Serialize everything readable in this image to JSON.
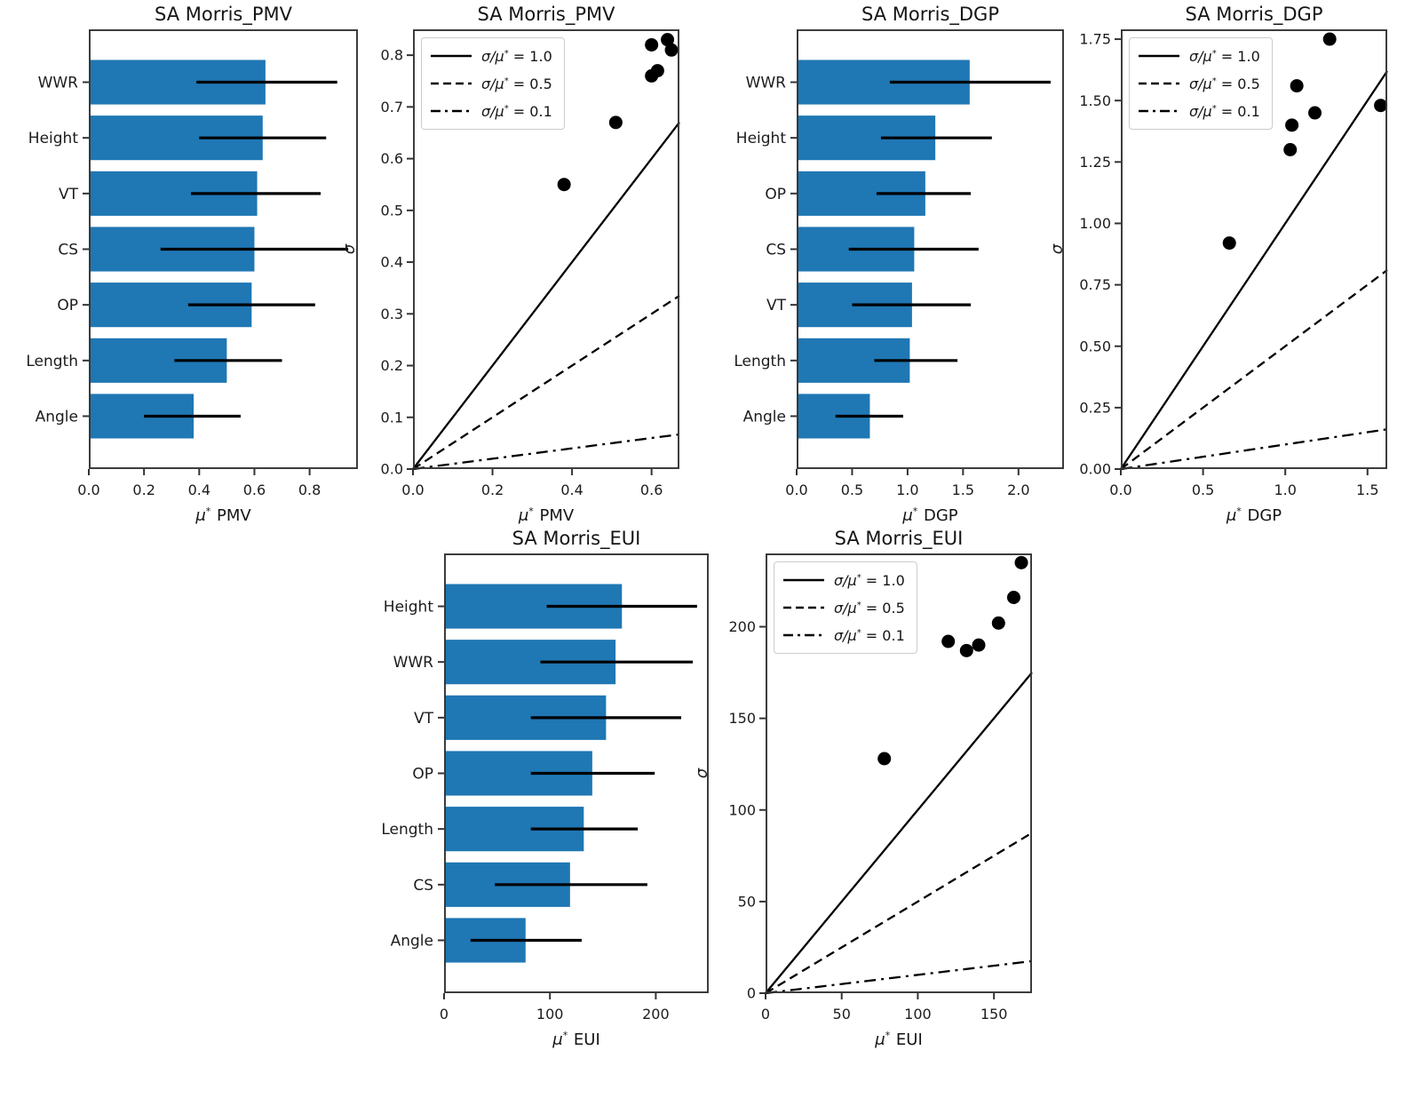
{
  "figure": {
    "background": "#ffffff"
  },
  "colors": {
    "bar": "#1f77b4",
    "error_bar": "#000000",
    "point": "#000000",
    "ref_line": "#000000",
    "spine": "#333333",
    "text": "#1c1c1c",
    "legend_border": "#cccccc"
  },
  "chart_data": [
    {
      "id": "pmv-bar",
      "type": "bar",
      "title": "SA Morris_PMV",
      "xlabel": {
        "mu": "μ",
        "sup": "*",
        "rest": " PMV"
      },
      "categories": [
        "WWR",
        "Height",
        "VT",
        "CS",
        "OP",
        "Length",
        "Angle"
      ],
      "values": [
        0.64,
        0.63,
        0.61,
        0.6,
        0.59,
        0.5,
        0.38
      ],
      "err_lo": [
        0.39,
        0.4,
        0.37,
        0.26,
        0.36,
        0.31,
        0.2
      ],
      "err_hi": [
        0.9,
        0.86,
        0.84,
        0.94,
        0.82,
        0.7,
        0.55
      ],
      "xlim": [
        0,
        0.975
      ],
      "xticks": [
        0,
        0.2,
        0.4,
        0.6,
        0.8
      ],
      "xtick_labels": [
        "0.0",
        "0.2",
        "0.4",
        "0.6",
        "0.8"
      ],
      "grid": false
    },
    {
      "id": "pmv-scatter",
      "type": "scatter",
      "title": "SA Morris_PMV",
      "xlabel": {
        "mu": "μ",
        "sup": "*",
        "rest": " PMV"
      },
      "ylabel": "σ",
      "legend": [
        {
          "style": "solid",
          "pre": "σ/μ",
          "sup": "*",
          "post": " = 1.0"
        },
        {
          "style": "dashed",
          "pre": "σ/μ",
          "sup": "*",
          "post": " = 0.5"
        },
        {
          "style": "dashdot",
          "pre": "σ/μ",
          "sup": "*",
          "post": " = 0.1"
        }
      ],
      "ref_slopes": [
        1.0,
        0.5,
        0.1
      ],
      "points": [
        [
          0.6,
          0.82
        ],
        [
          0.64,
          0.83
        ],
        [
          0.65,
          0.81
        ],
        [
          0.615,
          0.77
        ],
        [
          0.6,
          0.76
        ],
        [
          0.51,
          0.67
        ],
        [
          0.38,
          0.55
        ]
      ],
      "xlim": [
        0,
        0.67
      ],
      "xticks": [
        0,
        0.2,
        0.4,
        0.6
      ],
      "xtick_labels": [
        "0.0",
        "0.2",
        "0.4",
        "0.6"
      ],
      "ylim": [
        0,
        0.85
      ],
      "yticks": [
        0,
        0.1,
        0.2,
        0.3,
        0.4,
        0.5,
        0.6,
        0.7,
        0.8
      ],
      "ytick_labels": [
        "0.0",
        "0.1",
        "0.2",
        "0.3",
        "0.4",
        "0.5",
        "0.6",
        "0.7",
        "0.8"
      ],
      "grid": false,
      "legend_position": "upper-left"
    },
    {
      "id": "dgp-bar",
      "type": "bar",
      "title": "SA Morris_DGP",
      "xlabel": {
        "mu": "μ",
        "sup": "*",
        "rest": " DGP"
      },
      "categories": [
        "WWR",
        "Height",
        "OP",
        "CS",
        "VT",
        "Length",
        "Angle"
      ],
      "values": [
        1.56,
        1.25,
        1.16,
        1.06,
        1.04,
        1.02,
        0.66
      ],
      "err_lo": [
        0.84,
        0.76,
        0.72,
        0.47,
        0.5,
        0.7,
        0.35
      ],
      "err_hi": [
        2.29,
        1.76,
        1.57,
        1.64,
        1.57,
        1.45,
        0.96
      ],
      "xlim": [
        0,
        2.41
      ],
      "xticks": [
        0,
        0.5,
        1.0,
        1.5,
        2.0
      ],
      "xtick_labels": [
        "0.0",
        "0.5",
        "1.0",
        "1.5",
        "2.0"
      ],
      "grid": false
    },
    {
      "id": "dgp-scatter",
      "type": "scatter",
      "title": "SA Morris_DGP",
      "xlabel": {
        "mu": "μ",
        "sup": "*",
        "rest": " DGP"
      },
      "ylabel": "σ",
      "legend": [
        {
          "style": "solid",
          "pre": "σ/μ",
          "sup": "*",
          "post": " = 1.0"
        },
        {
          "style": "dashed",
          "pre": "σ/μ",
          "sup": "*",
          "post": " = 0.5"
        },
        {
          "style": "dashdot",
          "pre": "σ/μ",
          "sup": "*",
          "post": " = 0.1"
        }
      ],
      "ref_slopes": [
        1.0,
        0.5,
        0.1
      ],
      "points": [
        [
          1.27,
          1.75
        ],
        [
          1.07,
          1.56
        ],
        [
          1.18,
          1.45
        ],
        [
          1.04,
          1.4
        ],
        [
          1.03,
          1.3
        ],
        [
          1.58,
          1.48
        ],
        [
          0.66,
          0.92
        ]
      ],
      "xlim": [
        0,
        1.62
      ],
      "xticks": [
        0,
        0.5,
        1.0,
        1.5
      ],
      "xtick_labels": [
        "0.0",
        "0.5",
        "1.0",
        "1.5"
      ],
      "ylim": [
        0,
        1.79
      ],
      "yticks": [
        0,
        0.25,
        0.5,
        0.75,
        1.0,
        1.25,
        1.5,
        1.75
      ],
      "ytick_labels": [
        "0.00",
        "0.25",
        "0.50",
        "0.75",
        "1.00",
        "1.25",
        "1.50",
        "1.75"
      ],
      "grid": false,
      "legend_position": "upper-left"
    },
    {
      "id": "eui-bar",
      "type": "bar",
      "title": "SA Morris_EUI",
      "xlabel": {
        "mu": "μ",
        "sup": "*",
        "rest": " EUI"
      },
      "categories": [
        "Height",
        "WWR",
        "VT",
        "OP",
        "Length",
        "CS",
        "Angle"
      ],
      "values": [
        168,
        162,
        153,
        140,
        132,
        119,
        77
      ],
      "err_lo": [
        97,
        91,
        82,
        82,
        82,
        48,
        25
      ],
      "err_hi": [
        239,
        235,
        224,
        199,
        183,
        192,
        130
      ],
      "xlim": [
        0,
        250
      ],
      "xticks": [
        0,
        100,
        200
      ],
      "xtick_labels": [
        "0",
        "100",
        "200"
      ],
      "grid": false
    },
    {
      "id": "eui-scatter",
      "type": "scatter",
      "title": "SA Morris_EUI",
      "xlabel": {
        "mu": "μ",
        "sup": "*",
        "rest": " EUI"
      },
      "ylabel": "σ",
      "legend": [
        {
          "style": "solid",
          "pre": "σ/μ",
          "sup": "*",
          "post": " = 1.0"
        },
        {
          "style": "dashed",
          "pre": "σ/μ",
          "sup": "*",
          "post": " = 0.5"
        },
        {
          "style": "dashdot",
          "pre": "σ/μ",
          "sup": "*",
          "post": " = 0.1"
        }
      ],
      "ref_slopes": [
        1.0,
        0.5,
        0.1
      ],
      "points": [
        [
          168,
          235
        ],
        [
          163,
          216
        ],
        [
          153,
          202
        ],
        [
          120,
          192
        ],
        [
          132,
          187
        ],
        [
          140,
          190
        ],
        [
          78,
          128
        ]
      ],
      "xlim": [
        0,
        175
      ],
      "xticks": [
        0,
        50,
        100,
        150
      ],
      "xtick_labels": [
        "0",
        "50",
        "100",
        "150"
      ],
      "ylim": [
        0,
        240
      ],
      "yticks": [
        0,
        50,
        100,
        150,
        200
      ],
      "ytick_labels": [
        "0",
        "50",
        "100",
        "150",
        "200"
      ],
      "grid": false,
      "legend_position": "upper-left"
    }
  ]
}
